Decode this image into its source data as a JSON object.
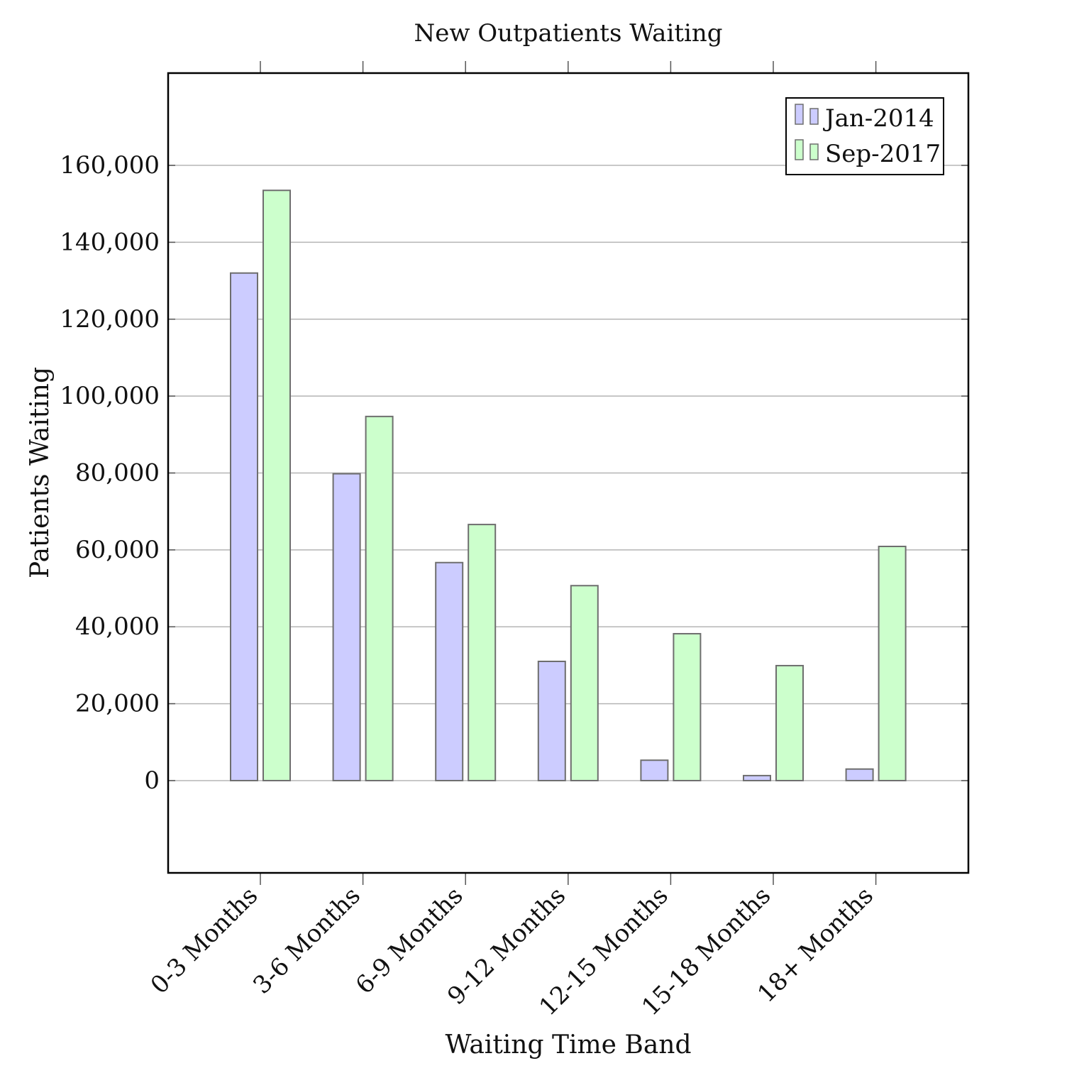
{
  "chart_data": {
    "type": "bar",
    "title": "New Outpatients Waiting",
    "xlabel": "Waiting Time Band",
    "ylabel": "Patients Waiting",
    "categories": [
      "0-3 Months",
      "3-6 Months",
      "6-9 Months",
      "9-12 Months",
      "12-15 Months",
      "15-18 Months",
      "18+ Months"
    ],
    "series": [
      {
        "name": "Jan-2014",
        "color": "#ccccff",
        "values": [
          132000,
          79800,
          56700,
          31000,
          5300,
          1300,
          3000
        ]
      },
      {
        "name": "Sep-2017",
        "color": "#ccffcc",
        "values": [
          153500,
          94700,
          66600,
          50700,
          38200,
          29900,
          60900
        ]
      }
    ],
    "ylim": [
      -24000,
      184000
    ],
    "yticks": [
      0,
      20000,
      40000,
      60000,
      80000,
      100000,
      120000,
      140000,
      160000
    ],
    "ytick_labels": [
      "0",
      "20,000",
      "40,000",
      "60,000",
      "80,000",
      "100,000",
      "120,000",
      "140,000",
      "160,000"
    ],
    "grid": true,
    "legend_position": "top-right"
  }
}
